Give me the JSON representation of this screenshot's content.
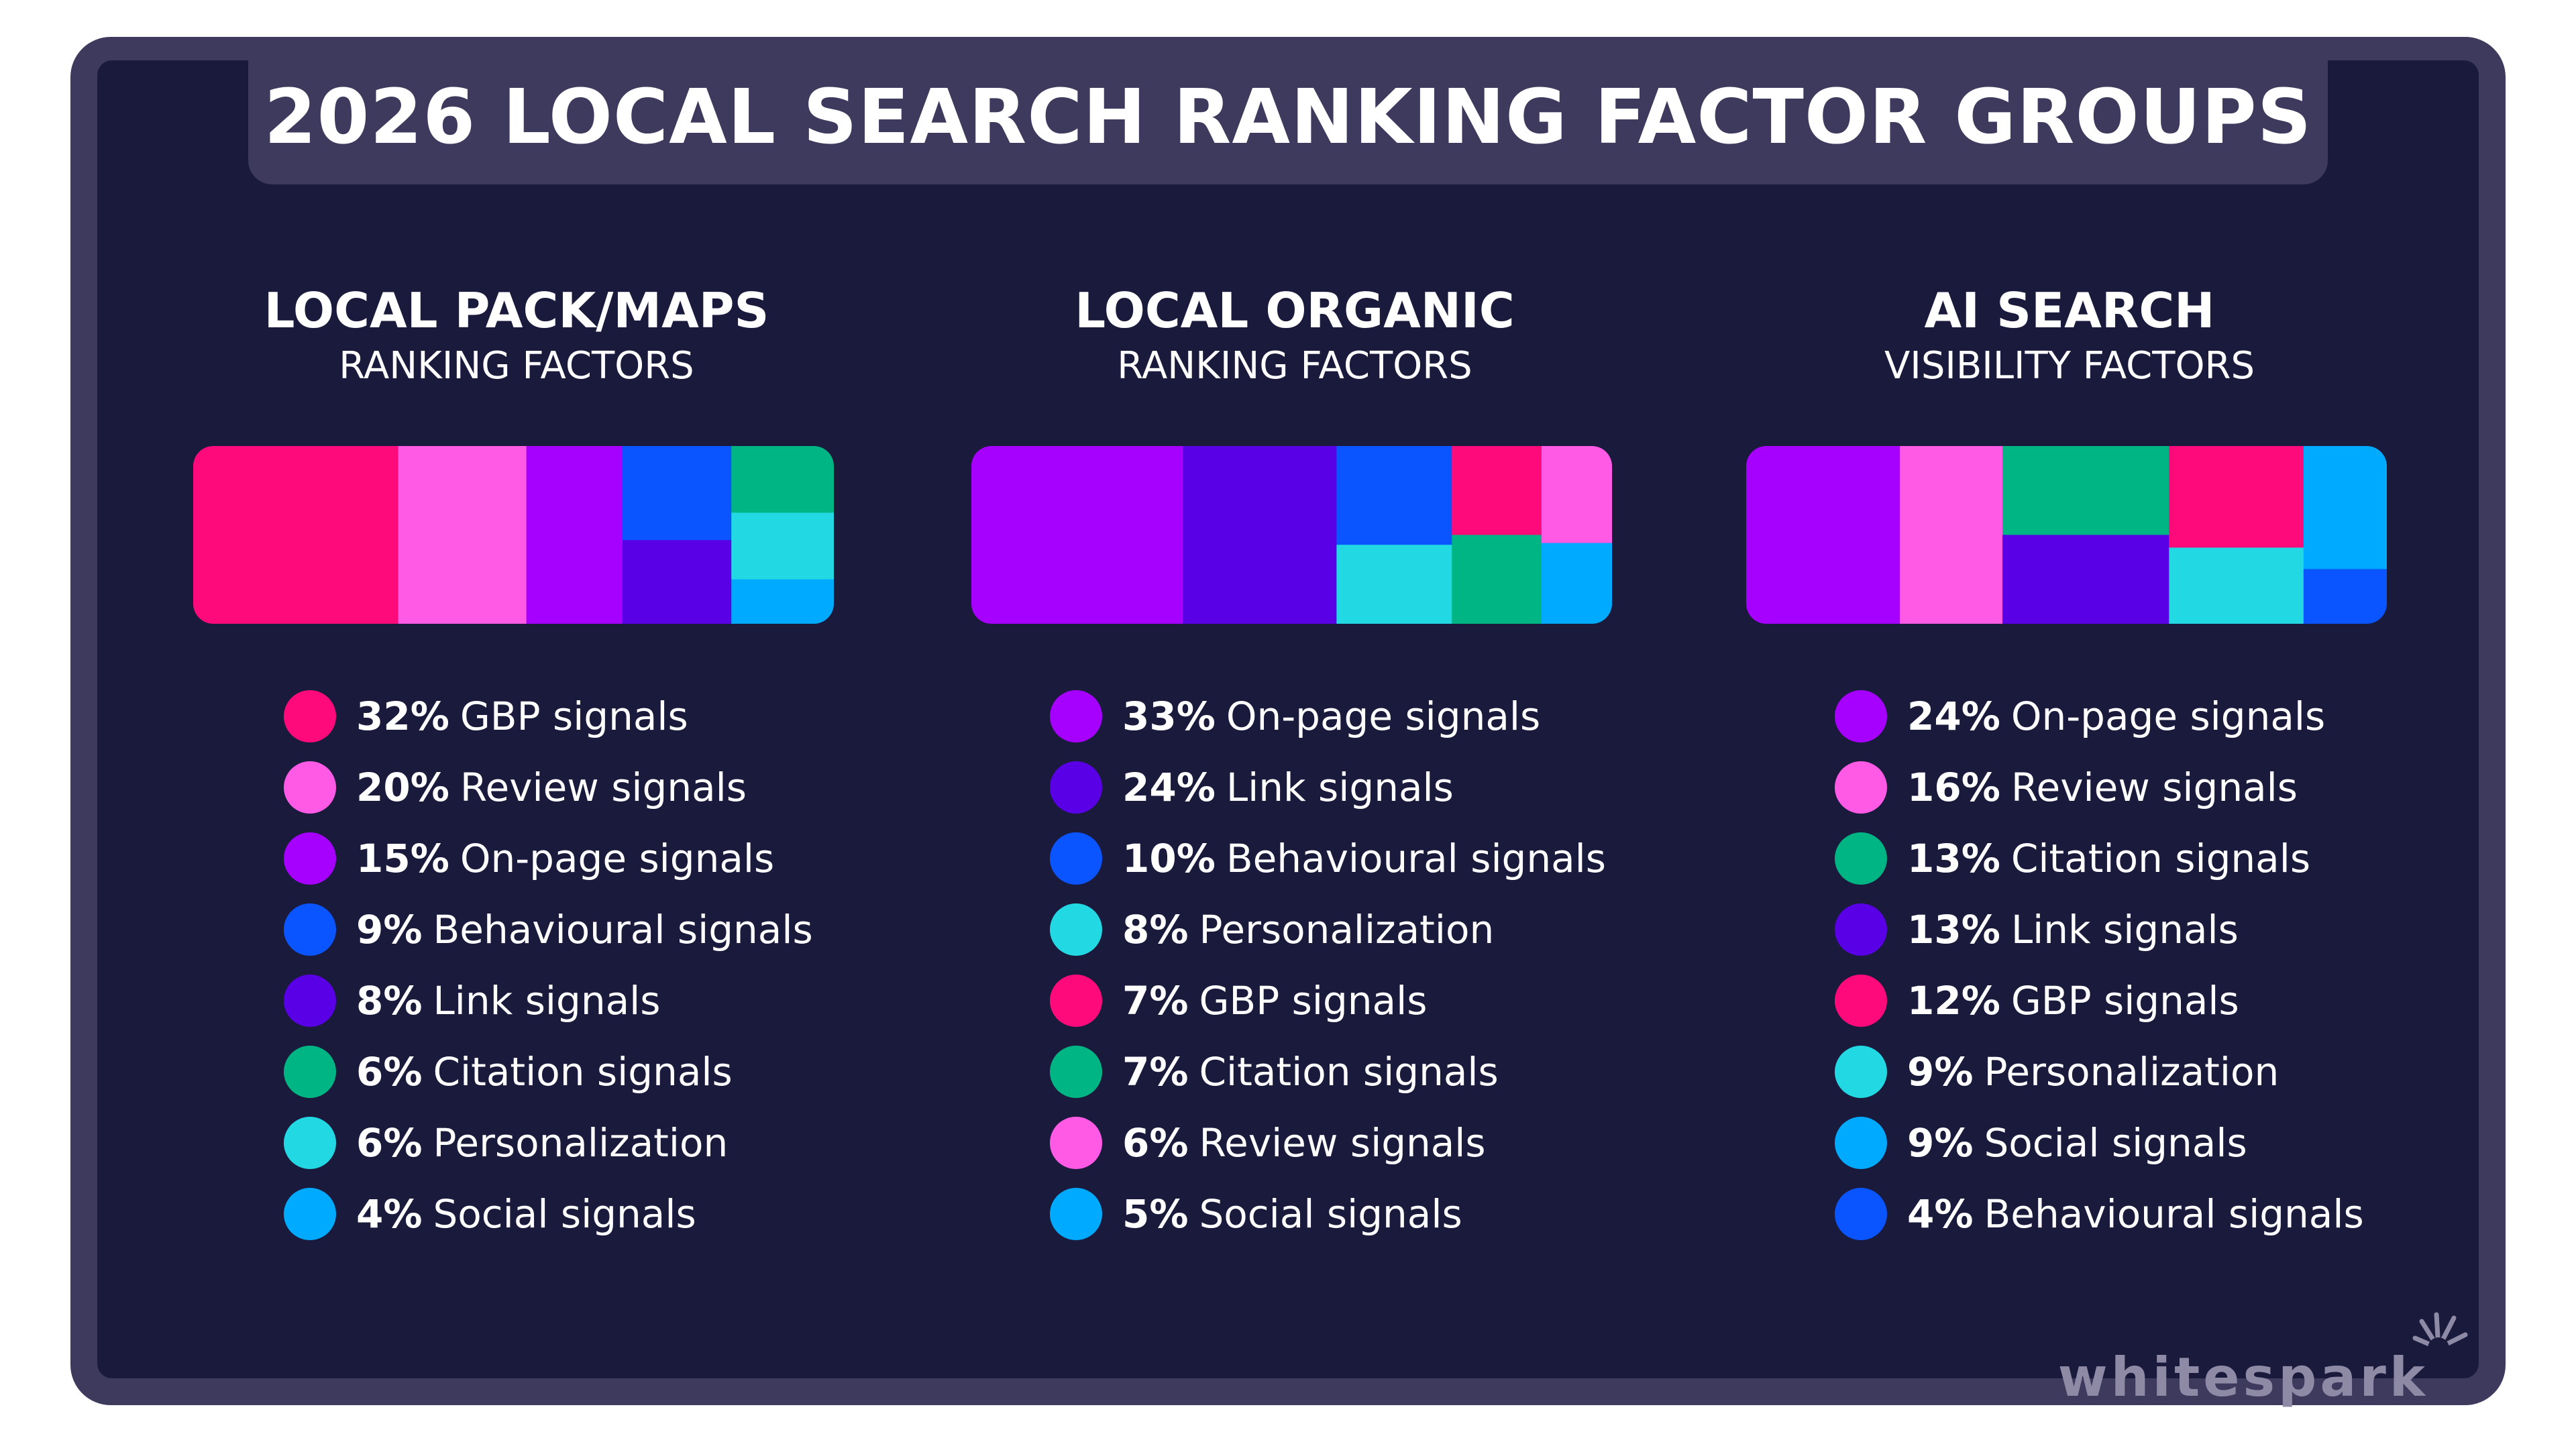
{
  "title": "2026 LOCAL SEARCH RANKING FACTOR GROUPS",
  "brand": "whitespark",
  "colors": {
    "frame": "#3e3a5e",
    "panel": "#1a1a3d",
    "gbp": "#ff0a7a",
    "review": "#ff5ae6",
    "onpage": "#a600ff",
    "behavioural": "#0a55ff",
    "link": "#5a00e6",
    "citation": "#00b584",
    "personalization": "#22d9e3",
    "social": "#00aaff"
  },
  "columns": [
    {
      "title": "LOCAL PACK/MAPS",
      "subtitle": "RANKING FACTORS"
    },
    {
      "title": "LOCAL ORGANIC",
      "subtitle": "RANKING FACTORS"
    },
    {
      "title": "AI SEARCH",
      "subtitle": "VISIBILITY FACTORS"
    }
  ],
  "chart_data": [
    {
      "type": "treemap",
      "title": "LOCAL PACK/MAPS",
      "subtitle": "RANKING FACTORS",
      "items": [
        {
          "pct": "32%",
          "label": "GBP signals",
          "value": 32,
          "color": "#ff0a7a"
        },
        {
          "pct": "20%",
          "label": "Review signals",
          "value": 20,
          "color": "#ff5ae6"
        },
        {
          "pct": "15%",
          "label": "On-page signals",
          "value": 15,
          "color": "#a600ff"
        },
        {
          "pct": "9%",
          "label": "Behavioural signals",
          "value": 9,
          "color": "#0a55ff"
        },
        {
          "pct": "8%",
          "label": "Link signals",
          "value": 8,
          "color": "#5a00e6"
        },
        {
          "pct": "6%",
          "label": "Citation signals",
          "value": 6,
          "color": "#00b584"
        },
        {
          "pct": "6%",
          "label": "Personalization",
          "value": 6,
          "color": "#22d9e3"
        },
        {
          "pct": "4%",
          "label": "Social signals",
          "value": 4,
          "color": "#00aaff"
        }
      ]
    },
    {
      "type": "treemap",
      "title": "LOCAL ORGANIC",
      "subtitle": "RANKING FACTORS",
      "items": [
        {
          "pct": "33%",
          "label": "On-page signals",
          "value": 33,
          "color": "#a600ff"
        },
        {
          "pct": "24%",
          "label": "Link signals",
          "value": 24,
          "color": "#5a00e6"
        },
        {
          "pct": "10%",
          "label": "Behavioural signals",
          "value": 10,
          "color": "#0a55ff"
        },
        {
          "pct": "8%",
          "label": "Personalization",
          "value": 8,
          "color": "#22d9e3"
        },
        {
          "pct": "7%",
          "label": "GBP signals",
          "value": 7,
          "color": "#ff0a7a"
        },
        {
          "pct": "7%",
          "label": "Citation signals",
          "value": 7,
          "color": "#00b584"
        },
        {
          "pct": "6%",
          "label": "Review signals",
          "value": 6,
          "color": "#ff5ae6"
        },
        {
          "pct": "5%",
          "label": "Social signals",
          "value": 5,
          "color": "#00aaff"
        }
      ]
    },
    {
      "type": "treemap",
      "title": "AI SEARCH",
      "subtitle": "VISIBILITY FACTORS",
      "items": [
        {
          "pct": "24%",
          "label": "On-page signals",
          "value": 24,
          "color": "#a600ff"
        },
        {
          "pct": "16%",
          "label": "Review signals",
          "value": 16,
          "color": "#ff5ae6"
        },
        {
          "pct": "13%",
          "label": "Citation signals",
          "value": 13,
          "color": "#00b584"
        },
        {
          "pct": "13%",
          "label": "Link signals",
          "value": 13,
          "color": "#5a00e6"
        },
        {
          "pct": "12%",
          "label": "GBP signals",
          "value": 12,
          "color": "#ff0a7a"
        },
        {
          "pct": "9%",
          "label": "Personalization",
          "value": 9,
          "color": "#22d9e3"
        },
        {
          "pct": "9%",
          "label": "Social signals",
          "value": 9,
          "color": "#00aaff"
        },
        {
          "pct": "4%",
          "label": "Behavioural signals",
          "value": 4,
          "color": "#0a55ff"
        }
      ]
    }
  ]
}
